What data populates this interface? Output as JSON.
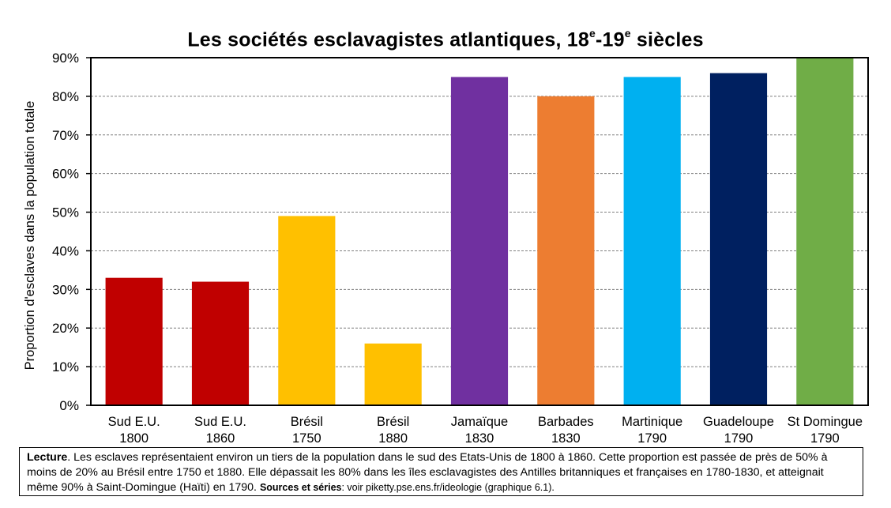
{
  "chart_data": {
    "type": "bar",
    "title": "Les sociétés esclavagistes atlantiques, 18e-19e siècles",
    "title_parts": {
      "t1": "Les sociétés esclavagistes atlantiques, 18",
      "s1": "e",
      "t2": "-19",
      "s2": "e",
      "t3": " siècles"
    },
    "xlabel": "",
    "ylabel": "Proportion d'esclaves dans la population totale",
    "ylim": [
      0,
      0.9
    ],
    "yticks": [
      0,
      0.1,
      0.2,
      0.3,
      0.4,
      0.5,
      0.6,
      0.7,
      0.8,
      0.9
    ],
    "ytick_labels": [
      "0%",
      "10%",
      "20%",
      "30%",
      "40%",
      "50%",
      "60%",
      "70%",
      "80%",
      "90%"
    ],
    "grid": true,
    "categories": [
      [
        "Sud E.U.",
        "1800"
      ],
      [
        "Sud E.U.",
        "1860"
      ],
      [
        "Brésil",
        "1750"
      ],
      [
        "Brésil",
        "1880"
      ],
      [
        "Jamaïque",
        "1830"
      ],
      [
        "Barbades",
        "1830"
      ],
      [
        "Martinique",
        "1790"
      ],
      [
        "Guadeloupe",
        "1790"
      ],
      [
        "St Domingue",
        "1790"
      ]
    ],
    "values": [
      0.33,
      0.32,
      0.49,
      0.16,
      0.85,
      0.8,
      0.85,
      0.86,
      0.9
    ],
    "colors": [
      "#c00000",
      "#c00000",
      "#ffc000",
      "#ffc000",
      "#7030a0",
      "#ed7d31",
      "#00b0f0",
      "#002060",
      "#70ad47"
    ]
  },
  "caption": {
    "lecture_label": "Lecture",
    "lecture_text": ". Les esclaves représentaient environ un tiers de la population dans le sud des Etats-Unis de 1800 à 1860. Cette proportion est passée de près de 50% à moins de 20% au Brésil entre 1750 et 1880. Elle dépassait les 80% dans les îles esclavagistes des Antilles britanniques et françaises en 1780-1830, et atteignait même 90% à Saint-Domingue (Haïti) en 1790. ",
    "sources_label": "Sources et séries",
    "sources_text": ": voir piketty.pse.ens.fr/ideologie (graphique 6.1)."
  }
}
